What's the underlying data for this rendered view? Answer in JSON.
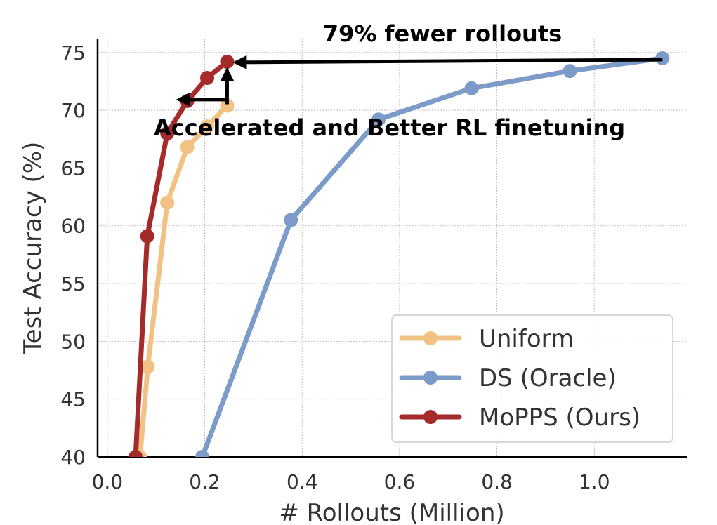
{
  "chart_data": {
    "type": "line",
    "xlabel": "# Rollouts (Million)",
    "ylabel": "Test Accuracy (%)",
    "xlim": [
      -0.02,
      1.19
    ],
    "ylim": [
      40,
      76.2
    ],
    "x_ticks": [
      0.0,
      0.2,
      0.4,
      0.6,
      0.8,
      1.0
    ],
    "x_tick_labels": [
      "0.0",
      "0.2",
      "0.4",
      "0.6",
      "0.8",
      "1.0"
    ],
    "y_ticks": [
      40,
      45,
      50,
      55,
      60,
      65,
      70,
      75
    ],
    "y_tick_labels": [
      "40",
      "45",
      "50",
      "55",
      "60",
      "65",
      "70",
      "75"
    ],
    "grid": true,
    "legend_position": "bottom-right",
    "series": [
      {
        "name": "Uniform",
        "color": "#F2C184",
        "x": [
          0.067,
          0.083,
          0.123,
          0.164,
          0.205,
          0.246
        ],
        "y": [
          40.0,
          47.8,
          62.0,
          66.8,
          68.6,
          70.4
        ]
      },
      {
        "name": "DS (Oracle)",
        "color": "#7C9BC9",
        "x": [
          0.195,
          0.377,
          0.557,
          0.748,
          0.95,
          1.14
        ],
        "y": [
          40.0,
          60.5,
          69.2,
          71.9,
          73.4,
          74.5
        ]
      },
      {
        "name": "MoPPS (Ours)",
        "color": "#A52A2A",
        "x": [
          0.058,
          0.082,
          0.123,
          0.164,
          0.205,
          0.246
        ],
        "y": [
          40.0,
          59.1,
          68.0,
          70.8,
          72.8,
          74.2
        ]
      }
    ],
    "annotations": [
      {
        "text": "79% fewer rollouts"
      },
      {
        "text": "Accelerated and Better RL finetuning"
      }
    ]
  }
}
